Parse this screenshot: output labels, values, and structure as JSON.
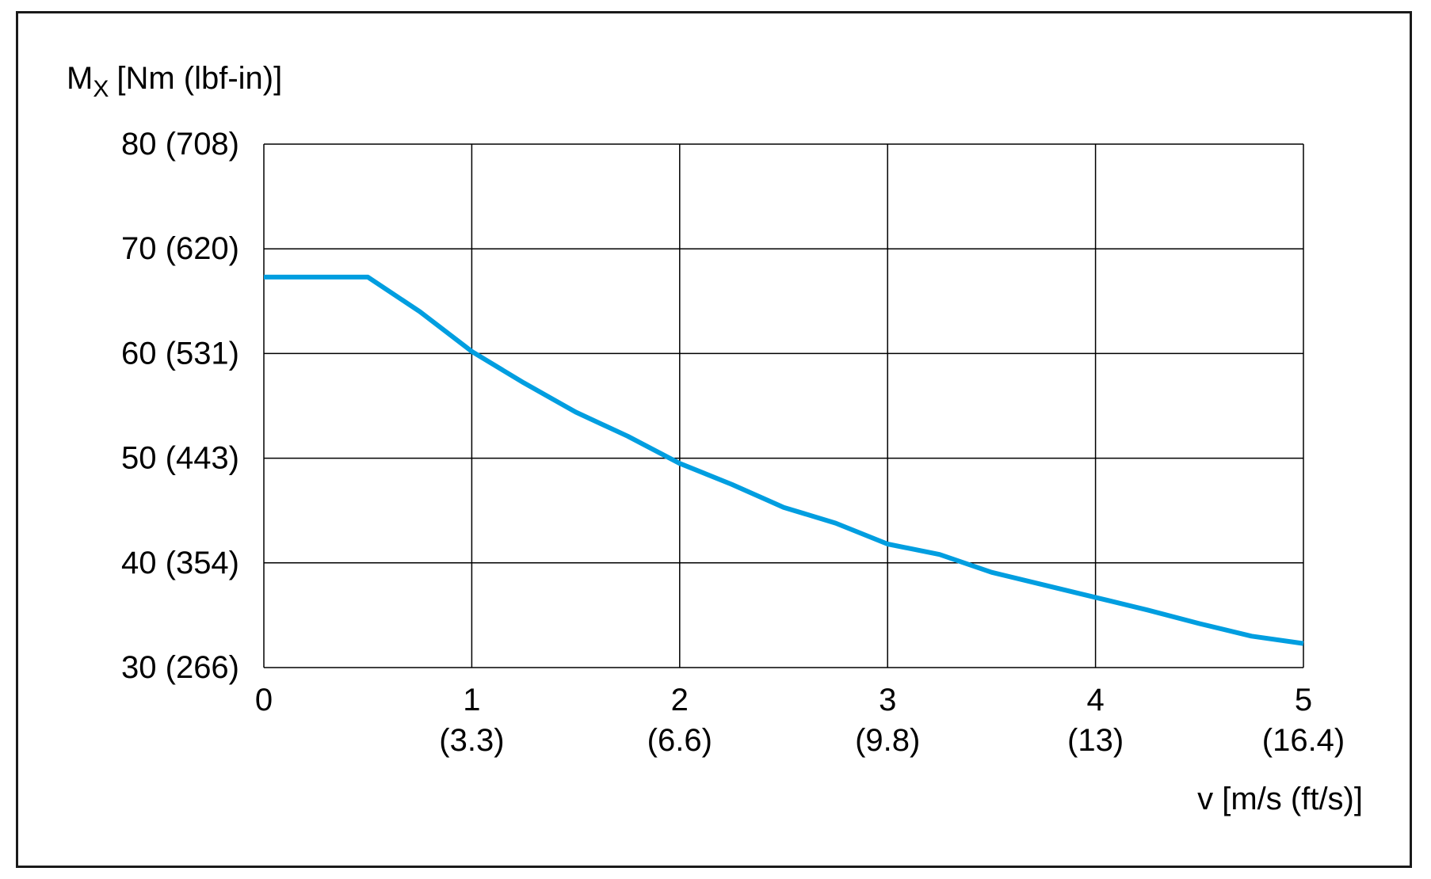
{
  "chart_data": {
    "type": "line",
    "ylabel_symbol": "M",
    "ylabel_subscript": "X",
    "ylabel_unit": "[Nm (lbf-in)]",
    "xlabel": "v [m/s (ft/s)]",
    "xlim": [
      0,
      5
    ],
    "ylim": [
      30,
      80
    ],
    "grid": true,
    "x_ticks": [
      {
        "value": 0,
        "label": "0",
        "sublabel": ""
      },
      {
        "value": 1,
        "label": "1",
        "sublabel": "(3.3)"
      },
      {
        "value": 2,
        "label": "2",
        "sublabel": "(6.6)"
      },
      {
        "value": 3,
        "label": "3",
        "sublabel": "(9.8)"
      },
      {
        "value": 4,
        "label": "4",
        "sublabel": "(13)"
      },
      {
        "value": 5,
        "label": "5",
        "sublabel": "(16.4)"
      }
    ],
    "y_ticks": [
      {
        "value": 80,
        "label": "80 (708)"
      },
      {
        "value": 70,
        "label": "70 (620)"
      },
      {
        "value": 60,
        "label": "60 (531)"
      },
      {
        "value": 50,
        "label": "50 (443)"
      },
      {
        "value": 40,
        "label": "40 (354)"
      },
      {
        "value": 30,
        "label": "30 (266)"
      }
    ],
    "series": [
      {
        "color": "#009ee0",
        "x": [
          0,
          0.5,
          0.75,
          1.0,
          1.25,
          1.5,
          1.75,
          2.0,
          2.25,
          2.5,
          2.75,
          3.0,
          3.25,
          3.5,
          3.75,
          4.0,
          4.25,
          4.5,
          4.75,
          5.0
        ],
        "y": [
          67.3,
          67.3,
          64.0,
          60.2,
          57.2,
          54.4,
          52.1,
          49.5,
          47.5,
          45.3,
          43.8,
          41.8,
          40.8,
          39.1,
          37.9,
          36.7,
          35.5,
          34.2,
          33.0,
          32.3
        ]
      }
    ]
  }
}
